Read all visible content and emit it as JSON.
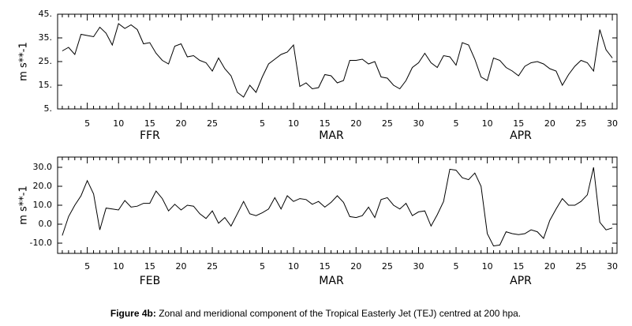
{
  "chart_data": [
    {
      "type": "line",
      "ylabel": "m s**-1",
      "months": [
        "FFR",
        "MAR",
        "APR"
      ],
      "categories": [
        null,
        null,
        null,
        null,
        "5",
        null,
        null,
        null,
        null,
        "10",
        null,
        null,
        null,
        null,
        "15",
        null,
        null,
        null,
        null,
        "20",
        null,
        null,
        null,
        null,
        "25",
        null,
        null,
        null,
        null,
        null,
        null,
        null,
        "5",
        null,
        null,
        null,
        null,
        "10",
        null,
        null,
        null,
        null,
        "15",
        null,
        null,
        null,
        null,
        "20",
        null,
        null,
        null,
        null,
        "25",
        null,
        null,
        null,
        null,
        "30",
        null,
        null,
        null,
        null,
        null,
        "5",
        null,
        null,
        null,
        null,
        "10",
        null,
        null,
        null,
        null,
        "15",
        null,
        null,
        null,
        null,
        "20",
        null,
        null,
        null,
        null,
        "25",
        null,
        null,
        null,
        null,
        "30"
      ],
      "series": [
        {
          "color": "#000000",
          "values": [
            29.5,
            31,
            28,
            36.5,
            36,
            35.5,
            39.5,
            37,
            32,
            41,
            39,
            40.5,
            38.5,
            32.5,
            33,
            28.5,
            25.5,
            24,
            31.5,
            32.5,
            27,
            27.5,
            25.5,
            24.5,
            21,
            26.5,
            22,
            19,
            12,
            10,
            15,
            12,
            18.5,
            24,
            26,
            28,
            29,
            32,
            14.5,
            16,
            13.5,
            14,
            19.5,
            19,
            16,
            17,
            25.5,
            25.5,
            26,
            24,
            25,
            18.5,
            18,
            15,
            13.5,
            17,
            22.5,
            24.5,
            28.5,
            24.5,
            22.5,
            27.5,
            27,
            23.5,
            33,
            32,
            26,
            18.5,
            17,
            26.5,
            25.5,
            22.5,
            21,
            19,
            23,
            24.5,
            25,
            24,
            22,
            21,
            15,
            19.5,
            23,
            25.5,
            24.5,
            21,
            38.5,
            30,
            26.5
          ]
        }
      ],
      "ylim": [
        5,
        45
      ],
      "yticks": [
        {
          "value": 5,
          "label": "5."
        },
        {
          "value": 15,
          "label": "15."
        },
        {
          "value": 25,
          "label": "25."
        },
        {
          "value": 35,
          "label": "35."
        },
        {
          "value": 45,
          "label": "45."
        }
      ]
    },
    {
      "type": "line",
      "ylabel": "m s**-1",
      "months": [
        "FEB",
        "MAR",
        "APR"
      ],
      "categories": [
        null,
        null,
        null,
        null,
        "5",
        null,
        null,
        null,
        null,
        "10",
        null,
        null,
        null,
        null,
        "15",
        null,
        null,
        null,
        null,
        "20",
        null,
        null,
        null,
        null,
        "25",
        null,
        null,
        null,
        null,
        null,
        null,
        null,
        "5",
        null,
        null,
        null,
        null,
        "10",
        null,
        null,
        null,
        null,
        "15",
        null,
        null,
        null,
        null,
        "20",
        null,
        null,
        null,
        null,
        "25",
        null,
        null,
        null,
        null,
        "30",
        null,
        null,
        null,
        null,
        null,
        "5",
        null,
        null,
        null,
        null,
        "10",
        null,
        null,
        null,
        null,
        "15",
        null,
        null,
        null,
        null,
        "20",
        null,
        null,
        null,
        null,
        "25",
        null,
        null,
        null,
        null,
        "30"
      ],
      "series": [
        {
          "color": "#000000",
          "values": [
            -6,
            4,
            10,
            15,
            23,
            16,
            -3,
            8.5,
            8,
            7.5,
            12.5,
            9,
            9.5,
            11,
            11,
            17.5,
            13.5,
            7,
            10.5,
            7.5,
            10,
            9.5,
            5.5,
            3,
            7,
            0.5,
            3.5,
            -1,
            5.5,
            12,
            5.5,
            4.5,
            6,
            8,
            14,
            8,
            15,
            12,
            13.5,
            13,
            10.5,
            12,
            9,
            11.5,
            15,
            11.5,
            4,
            3.5,
            4.5,
            9,
            3.5,
            13,
            14,
            10,
            8,
            11,
            4.5,
            6.5,
            7,
            -1,
            5,
            12,
            29,
            28.5,
            24.5,
            23.5,
            27,
            20,
            -5,
            -11.5,
            -11,
            -4,
            -5,
            -5.5,
            -5,
            -3,
            -4,
            -7.5,
            2,
            8,
            13.5,
            10,
            10,
            12,
            15.5,
            30,
            1,
            -3,
            -2
          ]
        }
      ],
      "ylim": [
        -15.4,
        35.4
      ],
      "yticks": [
        {
          "value": -10,
          "label": "-10.0"
        },
        {
          "value": 0,
          "label": "0.0"
        },
        {
          "value": 10,
          "label": "10.0"
        },
        {
          "value": 20,
          "label": "20.0"
        },
        {
          "value": 30,
          "label": "30.0"
        }
      ]
    }
  ],
  "caption": {
    "bold": "Figure 4b:",
    "text": " Zonal and meridional component of the Tropical Easterly Jet (TEJ) centred at 200 hpa."
  }
}
